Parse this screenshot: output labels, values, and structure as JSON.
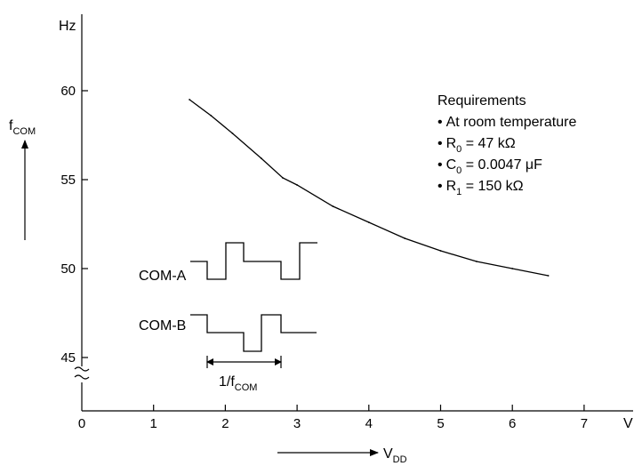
{
  "chart_data": {
    "type": "line",
    "title": "",
    "xlabel": {
      "main": "V",
      "sub": "DD"
    },
    "ylabel": {
      "main": "f",
      "sub": "COM"
    },
    "x_unit": "V",
    "y_unit": "Hz",
    "xlim": [
      0,
      7.5
    ],
    "ylim": [
      45,
      63
    ],
    "x_ticks": [
      "0",
      "1",
      "2",
      "3",
      "4",
      "5",
      "6",
      "7"
    ],
    "y_ticks": [
      "45",
      "50",
      "55",
      "60"
    ],
    "y_axis_break": true,
    "grid": false,
    "series": [
      {
        "x": [
          1.5,
          1.8,
          2.1,
          2.5,
          2.8,
          3.0,
          3.5,
          4.0,
          4.5,
          5.0,
          5.5,
          6.0,
          6.5
        ],
        "y": [
          59.5,
          58.6,
          57.6,
          56.2,
          55.1,
          54.7,
          53.5,
          52.6,
          51.7,
          51.0,
          50.4,
          50.0,
          49.6
        ]
      }
    ],
    "annotations": {
      "requirements_title": "Requirements",
      "requirements": [
        {
          "bullet": "•",
          "text": "At room temperature"
        },
        {
          "bullet": "•",
          "main": "R",
          "sub": "0",
          "rest": " = 47 kΩ"
        },
        {
          "bullet": "•",
          "main": "C",
          "sub": "0",
          "rest": " = 0.0047 μF"
        },
        {
          "bullet": "•",
          "main": "R",
          "sub": "1",
          "rest": " = 150 kΩ"
        }
      ],
      "com_a": "COM-A",
      "com_b": "COM-B",
      "period": {
        "main": "1/f",
        "sub": "COM"
      }
    }
  }
}
